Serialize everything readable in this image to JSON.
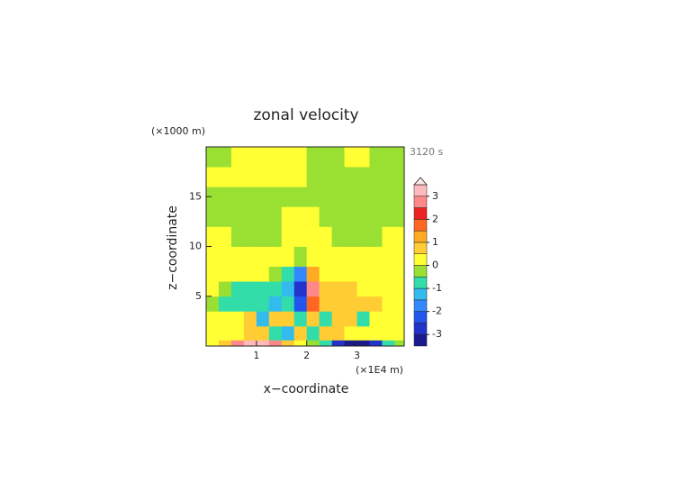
{
  "chart_data": {
    "type": "contour",
    "title": "zonal velocity",
    "y_unit_label": "(×1000 m)",
    "x_unit_label": "(×1E4 m)",
    "time_label": "3120 s",
    "x_label": "x−coordinate",
    "y_label": "z−coordinate",
    "xlim": [
      0,
      3.94
    ],
    "ylim": [
      0,
      20
    ],
    "xticks": [
      1,
      2,
      3
    ],
    "yticks": [
      5,
      10,
      15
    ],
    "xbins": [
      0,
      0.25,
      0.5,
      0.75,
      1,
      1.25,
      1.5,
      1.75,
      2,
      2.25,
      2.5,
      2.75,
      3,
      3.25,
      3.5,
      3.75,
      3.94
    ],
    "ybins": [
      0,
      0.6,
      2,
      3.5,
      5,
      6.5,
      8,
      10,
      12,
      14,
      16,
      18,
      20
    ],
    "z": [
      [
        0.2,
        0.7,
        2.7,
        3.2,
        3.2,
        2.7,
        0.7,
        0.2,
        -0.2,
        -0.7,
        -2.7,
        -3.2,
        -3.2,
        -2.7,
        -0.7,
        -0.2
      ],
      [
        0.2,
        0.2,
        0.2,
        0.7,
        0.7,
        -0.7,
        -1.2,
        0.7,
        -0.7,
        0.7,
        0.7,
        0.2,
        0.2,
        0.2,
        0.2,
        0.2
      ],
      [
        0.2,
        0.2,
        0.2,
        0.7,
        -1.2,
        0.7,
        0.7,
        -0.7,
        0.7,
        -0.7,
        0.7,
        0.7,
        -0.7,
        0.2,
        0.2,
        0.2
      ],
      [
        -0.2,
        -0.7,
        -0.7,
        -0.7,
        -0.7,
        -1.2,
        -0.7,
        -2.2,
        1.7,
        0.7,
        0.7,
        0.7,
        0.7,
        0.7,
        0.2,
        0.2
      ],
      [
        0.2,
        -0.2,
        -0.7,
        -0.7,
        -0.7,
        -0.7,
        -1.2,
        -2.7,
        2.7,
        0.7,
        0.7,
        0.7,
        0.2,
        0.2,
        0.2,
        0.2
      ],
      [
        0.2,
        0.2,
        0.2,
        0.2,
        0.2,
        -0.2,
        -0.7,
        -1.7,
        1.2,
        0.2,
        0.2,
        0.2,
        0.2,
        0.2,
        0.2,
        0.2
      ],
      [
        0.2,
        0.2,
        0.2,
        0.2,
        0.2,
        0.2,
        0.2,
        -0.2,
        0.2,
        0.2,
        0.2,
        0.2,
        0.2,
        0.2,
        0.2,
        0.2
      ],
      [
        0.2,
        0.2,
        -0.2,
        -0.2,
        -0.2,
        -0.2,
        0.2,
        0.2,
        0.2,
        0.2,
        -0.2,
        -0.2,
        -0.2,
        -0.2,
        0.2,
        0.2
      ],
      [
        -0.2,
        -0.2,
        -0.2,
        -0.2,
        -0.2,
        -0.2,
        0.2,
        0.2,
        0.2,
        -0.2,
        -0.2,
        -0.2,
        -0.2,
        -0.2,
        -0.2,
        -0.2
      ],
      [
        -0.2,
        -0.2,
        -0.2,
        -0.2,
        -0.2,
        -0.2,
        -0.2,
        -0.2,
        -0.2,
        -0.2,
        -0.2,
        -0.2,
        -0.2,
        -0.2,
        -0.2,
        -0.2
      ],
      [
        0.2,
        0.2,
        0.2,
        0.2,
        0.2,
        0.2,
        0.2,
        0.2,
        -0.2,
        -0.2,
        -0.2,
        -0.2,
        -0.2,
        -0.2,
        -0.2,
        -0.2
      ],
      [
        -0.2,
        -0.2,
        0.2,
        0.2,
        0.2,
        0.2,
        0.2,
        0.2,
        -0.2,
        -0.2,
        -0.2,
        0.2,
        0.2,
        -0.2,
        -0.2,
        -0.2
      ]
    ],
    "levels": [
      -3.5,
      -3,
      -2.5,
      -2,
      -1.5,
      -1,
      -0.5,
      0,
      0.5,
      1,
      1.5,
      2,
      2.5,
      3,
      3.5
    ],
    "colors": [
      "#1a1a8c",
      "#2233cc",
      "#2255ee",
      "#3388ff",
      "#33bbee",
      "#33ddaa",
      "#99e033",
      "#ffff33",
      "#ffcc33",
      "#ffaa22",
      "#ff6622",
      "#ee2222",
      "#ff8888",
      "#ffbbbb"
    ],
    "extend_color": "#ffe8e8",
    "colorbar_ticks": [
      -3,
      -2,
      -1,
      0,
      1,
      2,
      3
    ]
  }
}
